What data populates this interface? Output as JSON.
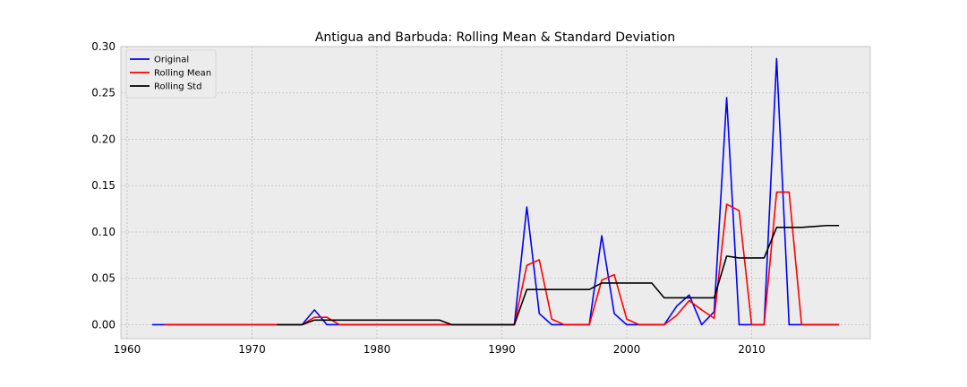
{
  "chart_data": {
    "type": "line",
    "title": "Antigua and Barbuda: Rolling Mean & Standard Deviation",
    "xlabel": "",
    "ylabel": "",
    "xlim": [
      1959.5,
      2019.5
    ],
    "ylim": [
      -0.015,
      0.3
    ],
    "xticks": [
      1960,
      1970,
      1980,
      1990,
      2000,
      2010
    ],
    "xtick_labels": [
      "1960",
      "1970",
      "1980",
      "1990",
      "2000",
      "2010"
    ],
    "yticks": [
      0.0,
      0.05,
      0.1,
      0.15,
      0.2,
      0.25,
      0.3
    ],
    "ytick_labels": [
      "0.00",
      "0.05",
      "0.10",
      "0.15",
      "0.20",
      "0.25",
      "0.30"
    ],
    "grid": true,
    "legend_position": "top-left",
    "background_color": "#ececec",
    "series": [
      {
        "name": "Original",
        "color": "#0000ff",
        "x": [
          1962,
          1963,
          1964,
          1965,
          1966,
          1967,
          1968,
          1969,
          1970,
          1971,
          1972,
          1973,
          1974,
          1975,
          1976,
          1977,
          1978,
          1979,
          1980,
          1981,
          1982,
          1983,
          1984,
          1985,
          1986,
          1987,
          1988,
          1989,
          1990,
          1991,
          1992,
          1993,
          1994,
          1995,
          1996,
          1997,
          1998,
          1999,
          2000,
          2001,
          2002,
          2003,
          2004,
          2005,
          2006,
          2007,
          2008,
          2009,
          2010,
          2011,
          2012,
          2013,
          2014,
          2015,
          2016,
          2017
        ],
        "y": [
          0,
          0,
          0,
          0,
          0,
          0,
          0,
          0,
          0,
          0,
          0,
          0,
          0,
          0.016,
          0,
          0,
          0,
          0,
          0,
          0,
          0,
          0,
          0,
          0,
          0,
          0,
          0,
          0,
          0,
          0,
          0.127,
          0.012,
          0,
          0,
          0,
          0,
          0.096,
          0.012,
          0,
          0,
          0,
          0,
          0.02,
          0.032,
          0,
          0.014,
          0.245,
          0,
          0,
          0,
          0.287,
          0,
          0,
          0,
          0,
          0
        ]
      },
      {
        "name": "Rolling Mean",
        "color": "#ff0000",
        "x": [
          1963,
          1964,
          1965,
          1966,
          1967,
          1968,
          1969,
          1970,
          1971,
          1972,
          1973,
          1974,
          1975,
          1976,
          1977,
          1978,
          1979,
          1980,
          1981,
          1982,
          1983,
          1984,
          1985,
          1986,
          1987,
          1988,
          1989,
          1990,
          1991,
          1992,
          1993,
          1994,
          1995,
          1996,
          1997,
          1998,
          1999,
          2000,
          2001,
          2002,
          2003,
          2004,
          2005,
          2006,
          2007,
          2008,
          2009,
          2010,
          2011,
          2012,
          2013,
          2014,
          2015,
          2016,
          2017
        ],
        "y": [
          0,
          0,
          0,
          0,
          0,
          0,
          0,
          0,
          0,
          0,
          0,
          0,
          0.008,
          0.008,
          0,
          0,
          0,
          0,
          0,
          0,
          0,
          0,
          0,
          0,
          0,
          0,
          0,
          0,
          0,
          0.064,
          0.07,
          0.006,
          0,
          0,
          0,
          0.048,
          0.054,
          0.006,
          0,
          0,
          0,
          0.01,
          0.026,
          0.016,
          0.007,
          0.13,
          0.123,
          0,
          0,
          0.143,
          0.143,
          0,
          0,
          0,
          0
        ]
      },
      {
        "name": "Rolling Std",
        "color": "#000000",
        "x": [
          1972,
          1973,
          1974,
          1975,
          1976,
          1977,
          1978,
          1979,
          1980,
          1981,
          1982,
          1983,
          1984,
          1985,
          1986,
          1987,
          1988,
          1989,
          1990,
          1991,
          1992,
          1993,
          1994,
          1995,
          1996,
          1997,
          1998,
          1999,
          2000,
          2001,
          2002,
          2003,
          2004,
          2005,
          2006,
          2007,
          2008,
          2009,
          2010,
          2011,
          2012,
          2013,
          2014,
          2015,
          2016,
          2017
        ],
        "y": [
          0,
          0,
          0,
          0.005,
          0.005,
          0.005,
          0.005,
          0.005,
          0.005,
          0.005,
          0.005,
          0.005,
          0.005,
          0.005,
          0,
          0,
          0,
          0,
          0,
          0,
          0.038,
          0.038,
          0.038,
          0.038,
          0.038,
          0.038,
          0.045,
          0.045,
          0.045,
          0.045,
          0.045,
          0.029,
          0.029,
          0.029,
          0.029,
          0.029,
          0.074,
          0.072,
          0.072,
          0.072,
          0.105,
          0.105,
          0.105,
          0.106,
          0.107,
          0.107
        ]
      }
    ]
  }
}
